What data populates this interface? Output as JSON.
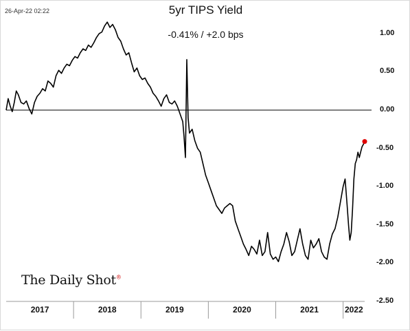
{
  "timestamp": "26-Apr-22 02:22",
  "title": "5yr TIPS Yield",
  "subtitle": "-0.41%  /  +2.0 bps",
  "logo_text": "The Daily Shot",
  "logo_mark": "®",
  "colors": {
    "line": "#000000",
    "last_point": "#e00000",
    "zero_line": "#000000",
    "axis": "#999999"
  },
  "chart_data": {
    "type": "line",
    "title": "5yr TIPS Yield",
    "y_axis_position": "right",
    "ylim": [
      -2.5,
      1.25
    ],
    "y_ticks": [
      1.0,
      0.5,
      0.0,
      -0.5,
      -1.0,
      -1.5,
      -2.0,
      -2.5
    ],
    "y_tick_labels": [
      "1.00",
      "0.50",
      "0.00",
      "-0.50",
      "-1.00",
      "-1.50",
      "-2.00",
      "-2.50"
    ],
    "x_range": [
      2017.0,
      2022.32
    ],
    "x_tick_labels": [
      {
        "label": "2017",
        "x": 2017.5
      },
      {
        "label": "2018",
        "x": 2018.5
      },
      {
        "label": "2019",
        "x": 2019.5
      },
      {
        "label": "2020",
        "x": 2020.5
      },
      {
        "label": "2021",
        "x": 2021.5
      },
      {
        "label": "2022",
        "x": 2022.16
      }
    ],
    "year_boundaries": [
      2018.0,
      2019.0,
      2020.0,
      2021.0,
      2022.0
    ],
    "reference_line": 0.0,
    "last_value": -0.41,
    "series": [
      {
        "x": [
          2017.0,
          2017.03,
          2017.06,
          2017.09,
          2017.12,
          2017.15,
          2017.18,
          2017.22,
          2017.26,
          2017.3,
          2017.34,
          2017.38,
          2017.42,
          2017.46,
          2017.5,
          2017.54,
          2017.58,
          2017.62,
          2017.66,
          2017.7,
          2017.74,
          2017.78,
          2017.82,
          2017.86,
          2017.9,
          2017.94,
          2017.98,
          2018.02,
          2018.06,
          2018.1,
          2018.14,
          2018.18,
          2018.22,
          2018.26,
          2018.3,
          2018.34,
          2018.38,
          2018.42,
          2018.46,
          2018.5,
          2018.54,
          2018.58,
          2018.62,
          2018.66,
          2018.7,
          2018.74,
          2018.78,
          2018.82,
          2018.86,
          2018.9,
          2018.94,
          2018.98,
          2019.02,
          2019.06,
          2019.1,
          2019.14,
          2019.18,
          2019.22,
          2019.26,
          2019.3,
          2019.34,
          2019.38,
          2019.42,
          2019.46,
          2019.5,
          2019.54,
          2019.58,
          2019.62,
          2019.64,
          2019.66,
          2019.68,
          2019.7,
          2019.72,
          2019.76,
          2019.8,
          2019.84,
          2019.88,
          2019.92,
          2019.96,
          2020.0,
          2020.04,
          2020.08,
          2020.12,
          2020.16,
          2020.2,
          2020.24,
          2020.28,
          2020.32,
          2020.36,
          2020.4,
          2020.44,
          2020.48,
          2020.52,
          2020.56,
          2020.6,
          2020.64,
          2020.68,
          2020.72,
          2020.76,
          2020.8,
          2020.84,
          2020.88,
          2020.92,
          2020.96,
          2021.0,
          2021.04,
          2021.08,
          2021.12,
          2021.16,
          2021.2,
          2021.24,
          2021.28,
          2021.32,
          2021.36,
          2021.4,
          2021.44,
          2021.48,
          2021.52,
          2021.56,
          2021.6,
          2021.64,
          2021.68,
          2021.72,
          2021.76,
          2021.8,
          2021.84,
          2021.88,
          2021.92,
          2021.96,
          2022.0,
          2022.03,
          2022.06,
          2022.08,
          2022.1,
          2022.12,
          2022.14,
          2022.16,
          2022.18,
          2022.2,
          2022.22,
          2022.24,
          2022.26,
          2022.28,
          2022.3,
          2022.32
        ],
        "values": [
          0.0,
          0.15,
          0.05,
          -0.02,
          0.1,
          0.25,
          0.2,
          0.1,
          0.08,
          0.12,
          0.02,
          -0.05,
          0.1,
          0.18,
          0.22,
          0.28,
          0.25,
          0.38,
          0.35,
          0.3,
          0.45,
          0.52,
          0.48,
          0.55,
          0.6,
          0.58,
          0.65,
          0.7,
          0.68,
          0.75,
          0.8,
          0.78,
          0.85,
          0.82,
          0.88,
          0.95,
          1.0,
          1.02,
          1.1,
          1.15,
          1.08,
          1.12,
          1.05,
          0.95,
          0.9,
          0.8,
          0.72,
          0.75,
          0.62,
          0.5,
          0.55,
          0.45,
          0.4,
          0.42,
          0.35,
          0.3,
          0.22,
          0.18,
          0.12,
          0.05,
          0.15,
          0.2,
          0.1,
          0.08,
          0.12,
          0.05,
          -0.05,
          -0.15,
          -0.35,
          -0.62,
          0.66,
          -0.1,
          -0.3,
          -0.25,
          -0.4,
          -0.5,
          -0.55,
          -0.7,
          -0.85,
          -0.95,
          -1.05,
          -1.15,
          -1.25,
          -1.3,
          -1.35,
          -1.28,
          -1.25,
          -1.22,
          -1.25,
          -1.45,
          -1.55,
          -1.65,
          -1.75,
          -1.82,
          -1.9,
          -1.78,
          -1.82,
          -1.88,
          -1.7,
          -1.9,
          -1.85,
          -1.6,
          -1.88,
          -1.95,
          -1.92,
          -1.98,
          -1.85,
          -1.75,
          -1.6,
          -1.72,
          -1.9,
          -1.85,
          -1.7,
          -1.55,
          -1.75,
          -1.9,
          -1.95,
          -1.7,
          -1.8,
          -1.75,
          -1.68,
          -1.85,
          -1.92,
          -1.95,
          -1.75,
          -1.62,
          -1.55,
          -1.4,
          -1.2,
          -1.0,
          -0.9,
          -1.25,
          -1.5,
          -1.7,
          -1.6,
          -1.3,
          -0.9,
          -0.7,
          -0.65,
          -0.55,
          -0.62,
          -0.55,
          -0.48,
          -0.45,
          -0.41
        ]
      }
    ]
  }
}
